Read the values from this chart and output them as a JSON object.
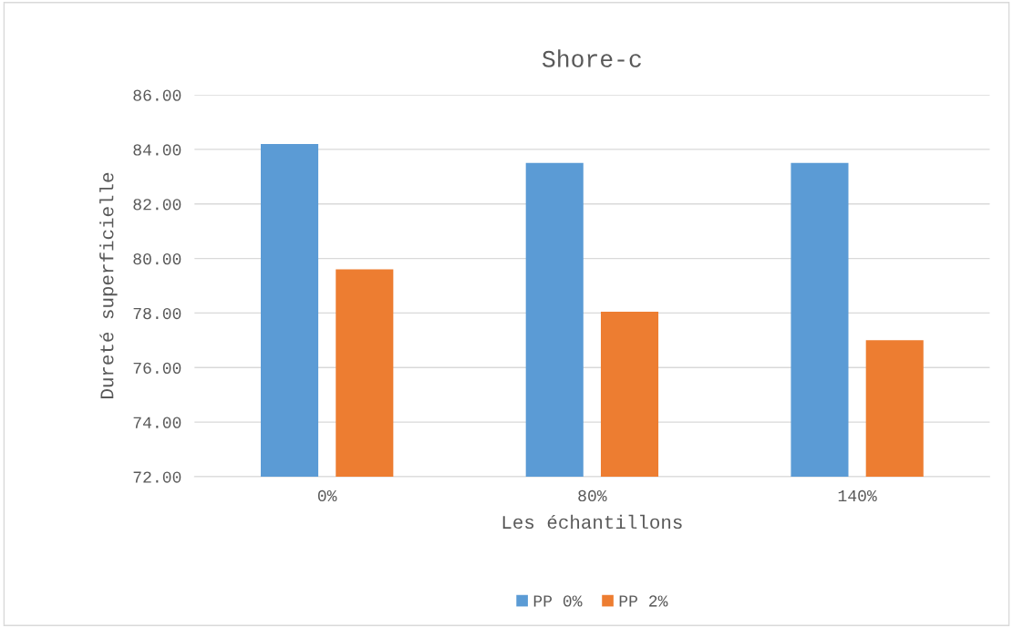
{
  "chart_data": {
    "type": "bar",
    "title": "Shore-c",
    "xlabel": "Les échantillons",
    "ylabel": "Dureté superficielle",
    "categories": [
      "0%",
      "80%",
      "140%"
    ],
    "series": [
      {
        "name": "PP 0%",
        "color": "#5b9bd5",
        "values": [
          84.2,
          83.5,
          83.5
        ]
      },
      {
        "name": "PP 2%",
        "color": "#ed7d31",
        "values": [
          79.6,
          78.05,
          77.0
        ]
      }
    ],
    "ylim": [
      72,
      86
    ],
    "yticks": [
      {
        "value": 72,
        "label": "72.00"
      },
      {
        "value": 74,
        "label": "74.00"
      },
      {
        "value": 76,
        "label": "76.00"
      },
      {
        "value": 78,
        "label": "78.00"
      },
      {
        "value": 80,
        "label": "80.00"
      },
      {
        "value": 82,
        "label": "82.00"
      },
      {
        "value": 84,
        "label": "84.00"
      },
      {
        "value": 86,
        "label": "86.00"
      }
    ],
    "grid": "y",
    "legend": "bottom"
  }
}
